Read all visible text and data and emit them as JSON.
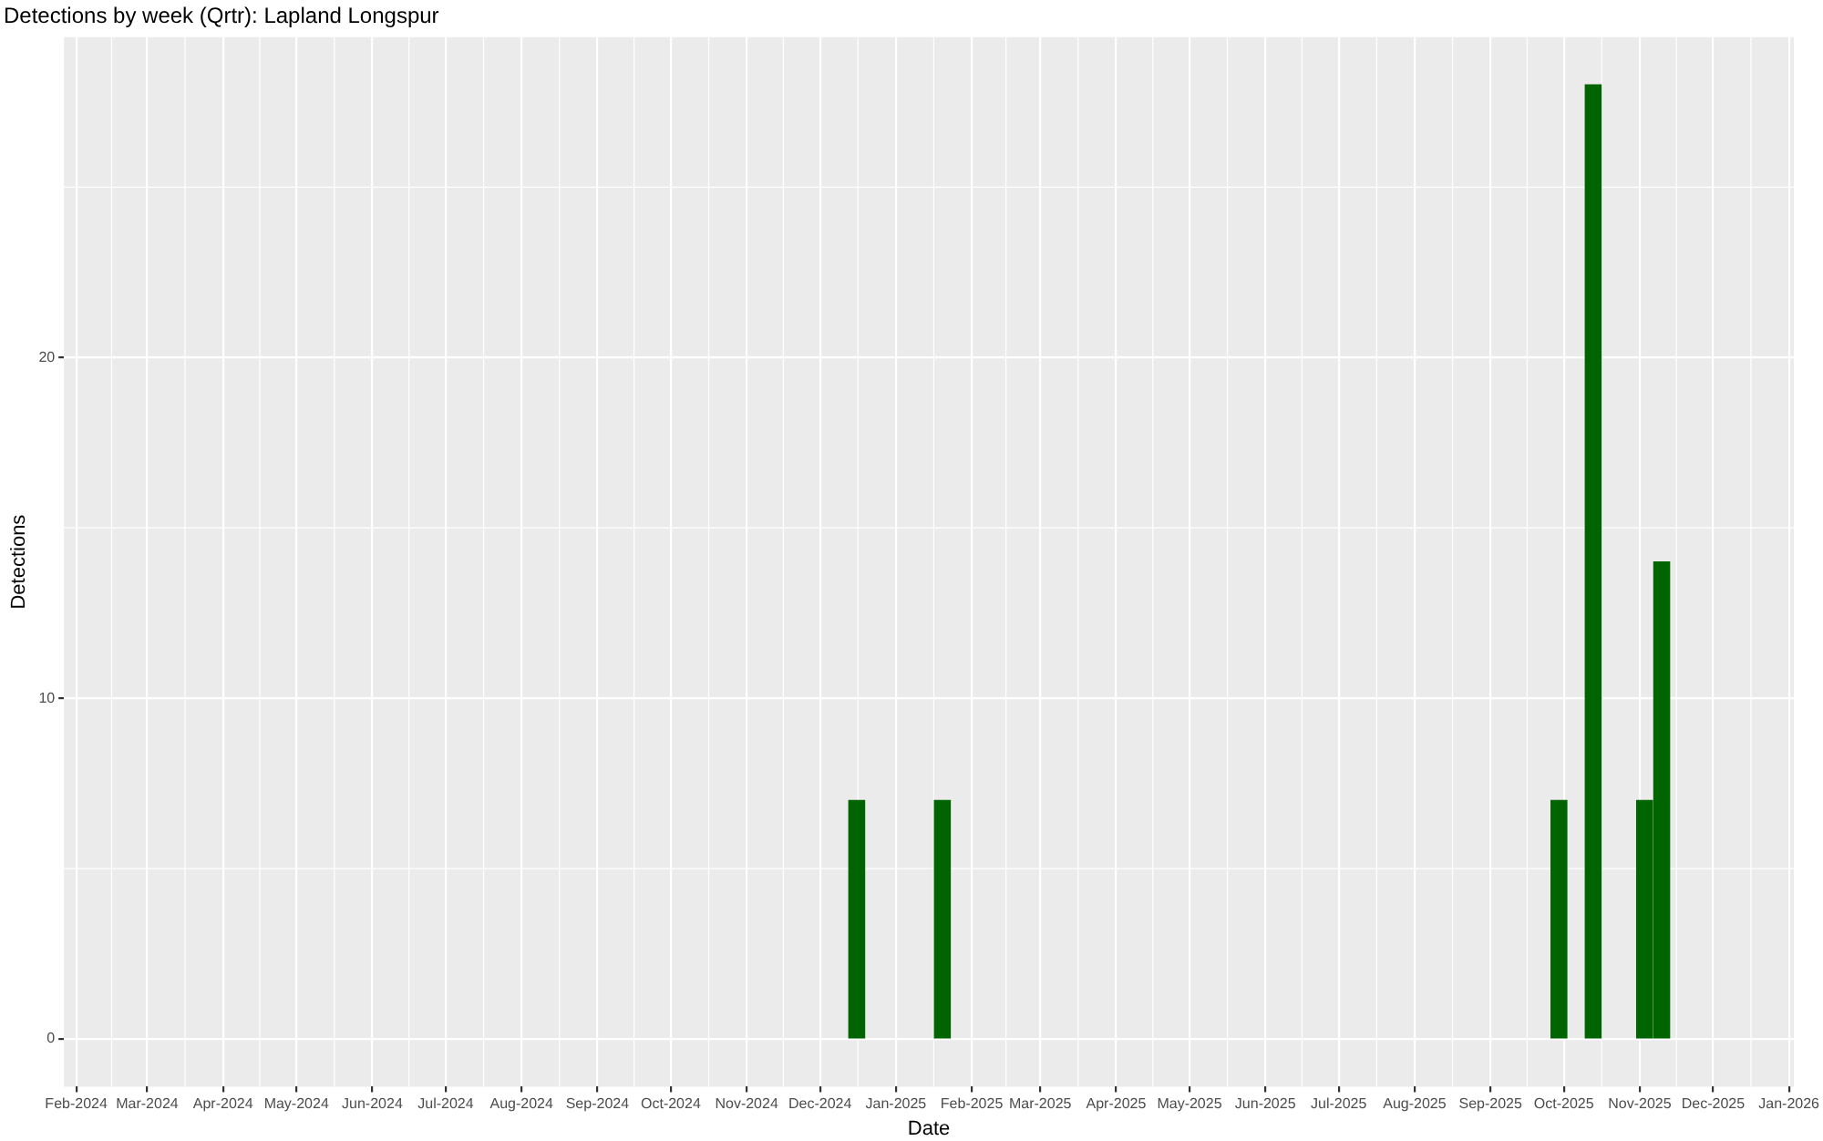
{
  "chart_data": {
    "type": "bar",
    "title": "Detections by week (Qrtr): Lapland Longspur",
    "xlabel": "Date",
    "ylabel": "Detections",
    "x": [
      "2024-12-16",
      "2025-01-20",
      "2025-09-29",
      "2025-10-13",
      "2025-11-03",
      "2025-11-10"
    ],
    "values": [
      7,
      7,
      7,
      28,
      7,
      14
    ],
    "color": "#006400",
    "xlim": [
      "2024-01-27",
      "2026-01-03"
    ],
    "xticks": [
      {
        "value": "2024-02-01",
        "label": "Feb-2024"
      },
      {
        "value": "2024-03-01",
        "label": "Mar-2024"
      },
      {
        "value": "2024-04-01",
        "label": "Apr-2024"
      },
      {
        "value": "2024-05-01",
        "label": "May-2024"
      },
      {
        "value": "2024-06-01",
        "label": "Jun-2024"
      },
      {
        "value": "2024-07-01",
        "label": "Jul-2024"
      },
      {
        "value": "2024-08-01",
        "label": "Aug-2024"
      },
      {
        "value": "2024-09-01",
        "label": "Sep-2024"
      },
      {
        "value": "2024-10-01",
        "label": "Oct-2024"
      },
      {
        "value": "2024-11-01",
        "label": "Nov-2024"
      },
      {
        "value": "2024-12-01",
        "label": "Dec-2024"
      },
      {
        "value": "2025-01-01",
        "label": "Jan-2025"
      },
      {
        "value": "2025-02-01",
        "label": "Feb-2025"
      },
      {
        "value": "2025-03-01",
        "label": "Mar-2025"
      },
      {
        "value": "2025-04-01",
        "label": "Apr-2025"
      },
      {
        "value": "2025-05-01",
        "label": "May-2025"
      },
      {
        "value": "2025-06-01",
        "label": "Jun-2025"
      },
      {
        "value": "2025-07-01",
        "label": "Jul-2025"
      },
      {
        "value": "2025-08-01",
        "label": "Aug-2025"
      },
      {
        "value": "2025-09-01",
        "label": "Sep-2025"
      },
      {
        "value": "2025-10-01",
        "label": "Oct-2025"
      },
      {
        "value": "2025-11-01",
        "label": "Nov-2025"
      },
      {
        "value": "2025-12-01",
        "label": "Dec-2025"
      },
      {
        "value": "2026-01-01",
        "label": "Jan-2026"
      }
    ],
    "ylim": [
      -1.4,
      29.4
    ],
    "yticks": [
      0,
      10,
      20
    ],
    "grid": true
  }
}
